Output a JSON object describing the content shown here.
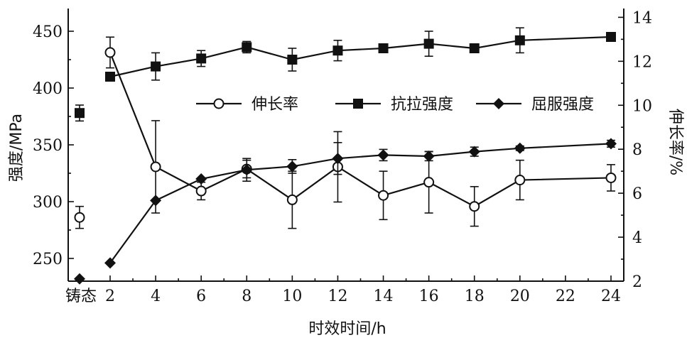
{
  "chart_data": {
    "type": "line",
    "xlabel": "时效时间/h",
    "ylabel_left": "强度/MPa",
    "ylabel_right": "伸长率/%",
    "x_tick_labels": [
      "铸态",
      "2",
      "4",
      "6",
      "8",
      "10",
      "12",
      "14",
      "16",
      "18",
      "20",
      "22",
      "24"
    ],
    "x_range": [
      0,
      24
    ],
    "ylim_left": [
      230,
      470
    ],
    "ylim_right": [
      2,
      14.4
    ],
    "y_ticks_left": [
      250,
      300,
      350,
      400,
      450
    ],
    "y_ticks_right": [
      2,
      4,
      6,
      8,
      10,
      12,
      14
    ],
    "legend": [
      "伸长率",
      "抗拉强度",
      "屈服强度"
    ],
    "series": [
      {
        "name": "伸长率",
        "axis": "right",
        "marker": "circle-open",
        "connected_from_index": 1,
        "points": [
          {
            "x": "铸态",
            "y": 4.9,
            "err": 0.5
          },
          {
            "x": 2,
            "y": 12.4,
            "err": 0.7
          },
          {
            "x": 4,
            "y": 7.2,
            "err": 2.1
          },
          {
            "x": 6,
            "y": 6.1,
            "err": 0.4
          },
          {
            "x": 8,
            "y": 7.1,
            "err": 0.4
          },
          {
            "x": 10,
            "y": 5.7,
            "err": 1.3
          },
          {
            "x": 12,
            "y": 7.2,
            "err": 1.6
          },
          {
            "x": 14,
            "y": 5.9,
            "err": 1.1
          },
          {
            "x": 16,
            "y": 6.5,
            "err": 1.4
          },
          {
            "x": 18,
            "y": 5.4,
            "err": 0.9
          },
          {
            "x": 20,
            "y": 6.6,
            "err": 0.9
          },
          {
            "x": 24,
            "y": 6.7,
            "err": 0.6
          }
        ]
      },
      {
        "name": "抗拉强度",
        "axis": "left",
        "marker": "square-filled",
        "connected_from_index": 1,
        "points": [
          {
            "x": "铸态",
            "y": 378,
            "err": 7
          },
          {
            "x": 2,
            "y": 410,
            "err": 0
          },
          {
            "x": 4,
            "y": 419,
            "err": 12
          },
          {
            "x": 6,
            "y": 426,
            "err": 7
          },
          {
            "x": 8,
            "y": 436,
            "err": 5
          },
          {
            "x": 10,
            "y": 425,
            "err": 10
          },
          {
            "x": 12,
            "y": 433,
            "err": 9
          },
          {
            "x": 14,
            "y": 435,
            "err": 3
          },
          {
            "x": 16,
            "y": 439,
            "err": 11
          },
          {
            "x": 18,
            "y": 435,
            "err": 3
          },
          {
            "x": 20,
            "y": 442,
            "err": 11
          },
          {
            "x": 24,
            "y": 445,
            "err": 3
          }
        ]
      },
      {
        "name": "屈服强度",
        "axis": "left",
        "marker": "diamond-filled",
        "connected_from_index": 1,
        "points": [
          {
            "x": "铸态",
            "y": 232,
            "err": 0
          },
          {
            "x": 2,
            "y": 246,
            "err": 0
          },
          {
            "x": 4,
            "y": 301,
            "err": 0
          },
          {
            "x": 6,
            "y": 320,
            "err": 0
          },
          {
            "x": 8,
            "y": 328,
            "err": 10
          },
          {
            "x": 10,
            "y": 331,
            "err": 6
          },
          {
            "x": 12,
            "y": 338,
            "err": 14
          },
          {
            "x": 14,
            "y": 341,
            "err": 5
          },
          {
            "x": 16,
            "y": 340,
            "err": 4
          },
          {
            "x": 18,
            "y": 344,
            "err": 4
          },
          {
            "x": 20,
            "y": 347,
            "err": 2
          },
          {
            "x": 24,
            "y": 351,
            "err": 3
          }
        ]
      }
    ]
  }
}
